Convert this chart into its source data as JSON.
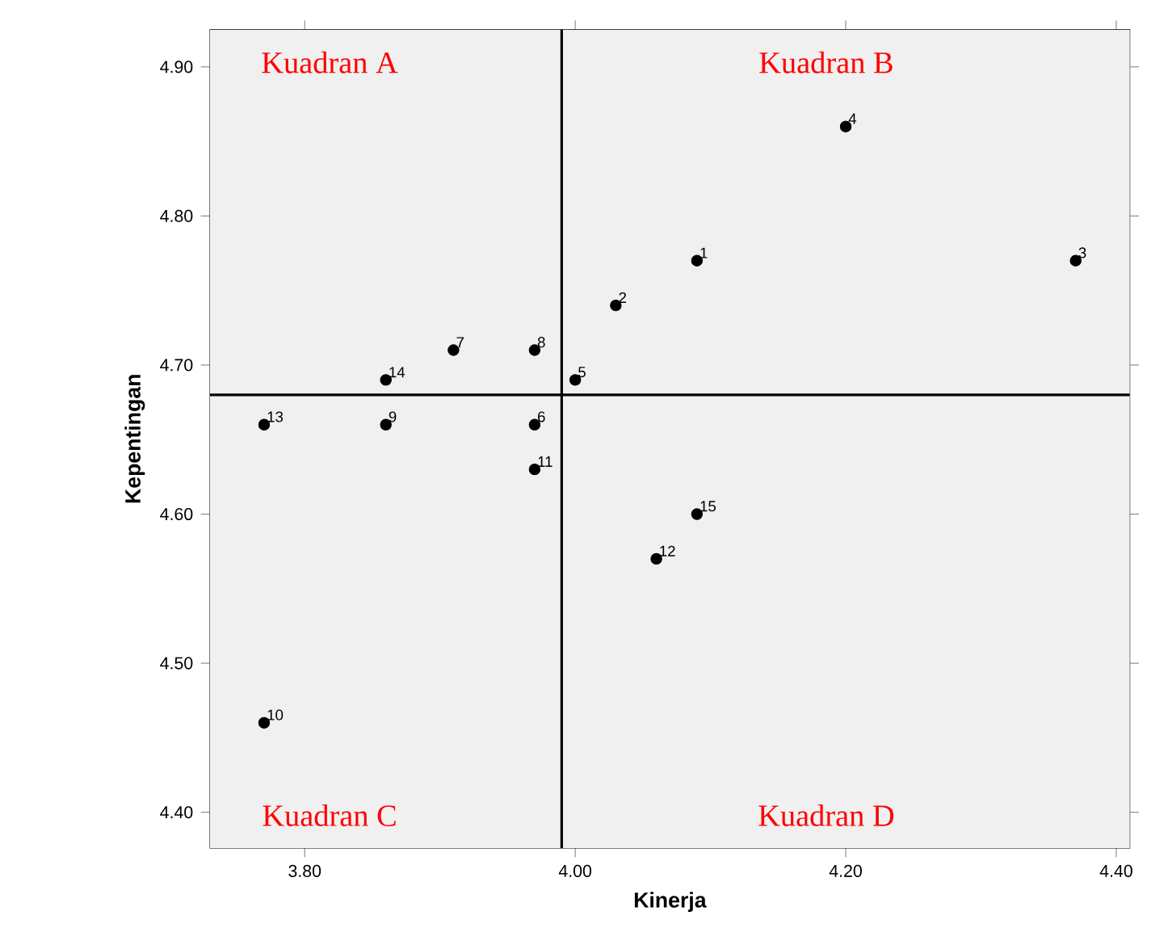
{
  "chart_data": {
    "type": "scatter",
    "xlabel": "Kinerja",
    "ylabel": "Kepentingan",
    "x": [
      4.09,
      4.03,
      4.37,
      4.2,
      4.0,
      3.97,
      3.91,
      3.97,
      3.86,
      3.77,
      3.97,
      4.06,
      3.77,
      3.86,
      4.09
    ],
    "values": [
      4.77,
      4.74,
      4.77,
      4.86,
      4.69,
      4.66,
      4.71,
      4.71,
      4.66,
      4.46,
      4.63,
      4.57,
      4.66,
      4.69,
      4.6
    ],
    "color": "#000000",
    "marker": "circle",
    "xlim": [
      3.73,
      4.41
    ],
    "ylim": [
      4.376,
      4.925
    ],
    "xticks": [
      {
        "value": 3.8,
        "label": "3.80"
      },
      {
        "value": 4.0,
        "label": "4.00"
      },
      {
        "value": 4.2,
        "label": "4.20"
      },
      {
        "value": 4.4,
        "label": "4.40"
      }
    ],
    "yticks": [
      {
        "value": 4.4,
        "label": "4.40"
      },
      {
        "value": 4.5,
        "label": "4.50"
      },
      {
        "value": 4.6,
        "label": "4.60"
      },
      {
        "value": 4.7,
        "label": "4.70"
      },
      {
        "value": 4.8,
        "label": "4.80"
      },
      {
        "value": 4.9,
        "label": "4.90"
      }
    ],
    "ref_lines": [
      {
        "axis": "x",
        "value": 3.99,
        "color": "#000000"
      },
      {
        "axis": "y",
        "value": 4.68,
        "color": "#000000"
      }
    ],
    "annotations": [
      "Kuadran A",
      "Kuadran B",
      "Kuadran C",
      "Kuadran D",
      {
        "text": "1",
        "x": 4.09,
        "y": 4.77
      },
      {
        "text": "2",
        "x": 4.03,
        "y": 4.74
      },
      {
        "text": "3",
        "x": 4.37,
        "y": 4.77
      },
      {
        "text": "4",
        "x": 4.2,
        "y": 4.86
      },
      {
        "text": "5",
        "x": 4.0,
        "y": 4.69
      },
      {
        "text": "6",
        "x": 3.97,
        "y": 4.66
      },
      {
        "text": "7",
        "x": 3.91,
        "y": 4.71
      },
      {
        "text": "8",
        "x": 3.97,
        "y": 4.71
      },
      {
        "text": "9",
        "x": 3.86,
        "y": 4.66
      },
      {
        "text": "10",
        "x": 3.77,
        "y": 4.46
      },
      {
        "text": "11",
        "x": 3.97,
        "y": 4.63
      },
      {
        "text": "12",
        "x": 4.06,
        "y": 4.57
      },
      {
        "text": "13",
        "x": 3.77,
        "y": 4.66
      },
      {
        "text": "14",
        "x": 3.86,
        "y": 4.69
      },
      {
        "text": "15",
        "x": 4.09,
        "y": 4.6
      }
    ]
  }
}
